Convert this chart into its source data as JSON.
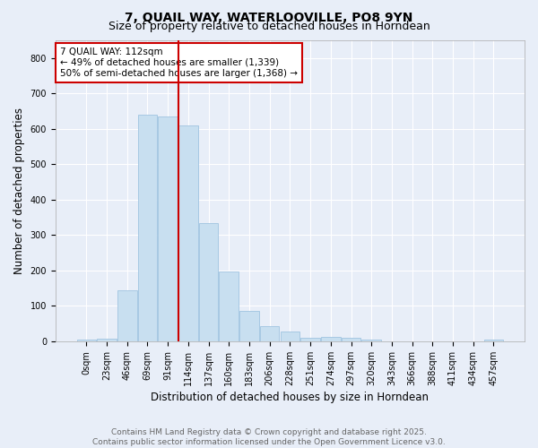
{
  "title": "7, QUAIL WAY, WATERLOOVILLE, PO8 9YN",
  "subtitle": "Size of property relative to detached houses in Horndean",
  "xlabel": "Distribution of detached houses by size in Horndean",
  "ylabel": "Number of detached properties",
  "bin_labels": [
    "0sqm",
    "23sqm",
    "46sqm",
    "69sqm",
    "91sqm",
    "114sqm",
    "137sqm",
    "160sqm",
    "183sqm",
    "206sqm",
    "228sqm",
    "251sqm",
    "274sqm",
    "297sqm",
    "320sqm",
    "343sqm",
    "366sqm",
    "388sqm",
    "411sqm",
    "434sqm",
    "457sqm"
  ],
  "bar_heights": [
    5,
    7,
    145,
    640,
    635,
    610,
    335,
    198,
    85,
    42,
    27,
    10,
    13,
    9,
    5,
    0,
    0,
    0,
    0,
    0,
    4
  ],
  "bar_color": "#c8dff0",
  "bar_edge_color": "#a0c4e0",
  "vline_x": 5.0,
  "vline_color": "#cc0000",
  "annotation_text": "7 QUAIL WAY: 112sqm\n← 49% of detached houses are smaller (1,339)\n50% of semi-detached houses are larger (1,368) →",
  "ylim": [
    0,
    850
  ],
  "yticks": [
    0,
    100,
    200,
    300,
    400,
    500,
    600,
    700,
    800
  ],
  "background_color": "#e8eef8",
  "plot_bg_color": "#e8eef8",
  "footer_text": "Contains HM Land Registry data © Crown copyright and database right 2025.\nContains public sector information licensed under the Open Government Licence v3.0.",
  "title_fontsize": 10,
  "subtitle_fontsize": 9,
  "xlabel_fontsize": 8.5,
  "ylabel_fontsize": 8.5,
  "tick_fontsize": 7,
  "footer_fontsize": 6.5,
  "annotation_fontsize": 7.5
}
